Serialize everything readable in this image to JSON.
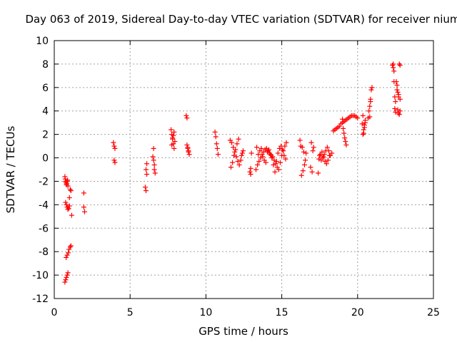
{
  "chart_data": {
    "type": "scatter",
    "title": "Day 063 of 2019, Sidereal Day-to-day VTEC variation (SDTVAR) for receiver nium",
    "xlabel": "GPS time / hours",
    "ylabel": "SDTVAR / TECUs",
    "xlim": [
      0,
      25
    ],
    "ylim": [
      -12,
      10
    ],
    "x_ticks": [
      0,
      5,
      10,
      15,
      20,
      25
    ],
    "y_ticks": [
      -12,
      -10,
      -8,
      -6,
      -4,
      -2,
      0,
      2,
      4,
      6,
      8,
      10
    ],
    "grid": true,
    "marker": "+",
    "color": "#ff0000",
    "series": [
      {
        "name": "SDTVAR",
        "x": [
          0.7,
          0.72,
          0.75,
          0.78,
          0.8,
          0.82,
          0.85,
          0.88,
          0.9,
          0.75,
          0.8,
          0.85,
          0.9,
          0.95,
          1.0,
          0.7,
          0.75,
          0.8,
          0.85,
          0.9,
          0.78,
          0.85,
          0.92,
          0.97,
          1.05,
          1.1,
          1.1,
          1.05,
          1.0,
          1.15,
          1.95,
          1.95,
          2.0,
          3.9,
          3.95,
          4.0,
          3.95,
          4.0,
          6.0,
          6.05,
          6.1,
          6.05,
          6.1,
          6.5,
          6.55,
          6.6,
          6.6,
          6.65,
          6.55,
          7.7,
          7.75,
          7.8,
          7.85,
          7.9,
          7.95,
          7.75,
          7.8,
          7.85,
          7.9,
          8.7,
          8.75,
          8.8,
          8.85,
          8.9,
          8.75,
          8.8,
          8.85,
          10.6,
          10.65,
          10.7,
          10.75,
          10.8,
          11.6,
          11.7,
          11.8,
          11.9,
          12.0,
          12.1,
          12.2,
          11.65,
          11.75,
          11.85,
          11.95,
          12.05,
          12.15,
          12.3,
          12.35,
          12.4,
          12.45,
          12.9,
          12.95,
          13.0,
          12.95,
          13.3,
          13.4,
          13.5,
          13.6,
          13.7,
          13.8,
          13.9,
          14.0,
          14.1,
          14.2,
          14.3,
          14.4,
          14.5,
          14.6,
          14.7,
          14.8,
          14.9,
          15.0,
          15.1,
          15.2,
          15.3,
          13.35,
          13.45,
          13.55,
          13.65,
          13.75,
          13.85,
          13.95,
          14.05,
          14.15,
          14.25,
          14.35,
          14.45,
          14.55,
          14.65,
          14.75,
          14.85,
          14.95,
          15.05,
          15.15,
          15.25,
          16.2,
          16.3,
          16.4,
          16.5,
          16.6,
          16.25,
          16.35,
          16.45,
          16.55,
          16.9,
          17.0,
          17.1,
          16.95,
          17.05,
          17.4,
          17.5,
          17.6,
          17.7,
          17.8,
          17.9,
          18.0,
          18.1,
          18.2,
          17.45,
          17.55,
          17.65,
          17.75,
          17.85,
          17.95,
          18.05,
          18.15,
          18.3,
          18.4,
          18.5,
          18.6,
          18.7,
          18.8,
          18.9,
          19.0,
          19.1,
          19.2,
          19.3,
          19.4,
          19.5,
          19.6,
          19.7,
          19.8,
          19.9,
          20.0,
          19.0,
          19.05,
          19.1,
          19.15,
          19.2,
          19.25,
          20.3,
          20.35,
          20.4,
          20.45,
          20.5,
          20.35,
          20.4,
          20.45,
          20.5,
          20.7,
          20.75,
          20.8,
          20.85,
          20.9,
          20.95,
          20.8,
          20.85,
          22.3,
          22.35,
          22.4,
          22.45,
          22.5,
          22.35,
          22.4,
          22.45,
          22.5,
          22.55,
          22.6,
          22.65,
          22.7,
          22.75,
          22.8,
          22.65,
          22.7,
          22.75,
          22.8,
          22.6,
          22.7,
          22.8
        ],
        "y": [
          -1.6,
          -1.8,
          -2.0,
          -2.1,
          -2.3,
          -2.2,
          -2.0,
          -1.9,
          -2.4,
          -3.8,
          -4.0,
          -4.2,
          -4.4,
          -4.3,
          -4.1,
          -10.6,
          -10.4,
          -10.2,
          -10.0,
          -9.8,
          -8.5,
          -8.3,
          -8.1,
          -7.8,
          -7.6,
          -7.5,
          -2.8,
          -2.7,
          -3.4,
          -4.9,
          -3.0,
          -4.2,
          -4.6,
          1.3,
          1.0,
          0.8,
          -0.2,
          -0.4,
          -2.5,
          -2.8,
          -0.5,
          -1.0,
          -1.4,
          0.1,
          -0.2,
          -0.6,
          -1.0,
          -1.3,
          0.8,
          2.4,
          2.0,
          1.6,
          1.2,
          0.8,
          1.4,
          1.1,
          1.7,
          1.9,
          2.2,
          3.6,
          3.4,
          0.9,
          0.6,
          0.3,
          1.1,
          0.8,
          0.5,
          2.2,
          1.8,
          1.2,
          0.8,
          0.3,
          1.5,
          1.3,
          0.9,
          0.5,
          0.1,
          -0.3,
          -0.6,
          -0.8,
          -0.4,
          0.2,
          0.7,
          1.2,
          1.6,
          -0.2,
          0.2,
          0.4,
          0.6,
          -1.2,
          -0.9,
          0.4,
          -1.4,
          -1.0,
          -0.6,
          -0.3,
          0.0,
          0.3,
          0.5,
          0.7,
          0.8,
          0.6,
          0.4,
          0.2,
          0.1,
          -0.2,
          -0.5,
          -0.8,
          -1.0,
          -0.4,
          0.2,
          0.6,
          1.0,
          1.3,
          0.9,
          0.3,
          0.6,
          0.8,
          0.1,
          -0.2,
          -0.4,
          0.5,
          0.7,
          0.3,
          0.0,
          -0.6,
          -1.2,
          -0.3,
          0.4,
          0.8,
          1.0,
          0.7,
          0.2,
          -0.1,
          1.5,
          -1.5,
          -1.1,
          -0.6,
          0.4,
          1.0,
          0.9,
          0.5,
          -0.2,
          -0.8,
          -1.2,
          0.9,
          1.3,
          0.6,
          -1.3,
          0.2,
          -0.2,
          0.0,
          0.3,
          0.6,
          0.9,
          0.6,
          0.2,
          -0.1,
          0.3,
          0.5,
          0.1,
          -0.3,
          -0.5,
          -0.2,
          0.2,
          0.4,
          2.3,
          2.4,
          2.5,
          2.6,
          2.7,
          2.9,
          3.0,
          3.1,
          3.2,
          3.3,
          3.4,
          3.5,
          3.6,
          3.6,
          3.6,
          3.5,
          3.4,
          3.3,
          2.5,
          2.1,
          1.7,
          1.4,
          1.1,
          2.9,
          2.0,
          2.4,
          2.8,
          3.2,
          3.6,
          2.1,
          2.6,
          3.0,
          3.4,
          4.0,
          4.4,
          5.0,
          5.8,
          6.0,
          3.5,
          4.8,
          7.9,
          7.7,
          7.4,
          5.2,
          4.8,
          8.0,
          6.5,
          4.2,
          3.9,
          6.5,
          6.2,
          5.6,
          5.2,
          8.0,
          7.9,
          4.1,
          3.8,
          3.7,
          4.0,
          5.8,
          5.4,
          5.0
        ]
      }
    ]
  }
}
